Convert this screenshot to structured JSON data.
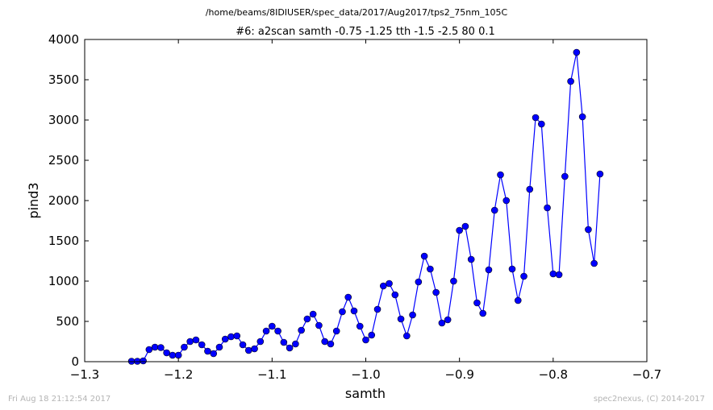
{
  "file_path": "/home/beams/8IDIUSER/spec_data/2017/Aug2017/tps2_75nm_105C",
  "footer": {
    "left": "Fri Aug 18 21:12:54 2017",
    "right": "spec2nexus, (C) 2014-2017"
  },
  "chart_data": {
    "type": "line",
    "title": "#6: a2scan  samth -0.75 -1.25  tth -1.5 -2.5  80 0.1",
    "xlabel": "samth",
    "ylabel": "pind3",
    "xlim": [
      -1.3,
      -0.7
    ],
    "ylim": [
      0,
      4000
    ],
    "xticks": [
      -1.3,
      -1.2,
      -1.1,
      -1.0,
      -0.9,
      -0.8,
      -0.7
    ],
    "xtick_labels": [
      "−1.3",
      "−1.2",
      "−1.1",
      "−1.0",
      "−0.9",
      "−0.8",
      "−0.7"
    ],
    "yticks": [
      0,
      500,
      1000,
      1500,
      2000,
      2500,
      3000,
      3500,
      4000
    ],
    "ytick_labels": [
      "0",
      "500",
      "1000",
      "1500",
      "2000",
      "2500",
      "3000",
      "3500",
      "4000"
    ],
    "grid": false,
    "series": [
      {
        "color": "#0000ff",
        "marker": "circle",
        "x": [
          -1.25,
          -1.24375,
          -1.2375,
          -1.23125,
          -1.225,
          -1.21875,
          -1.2125,
          -1.20625,
          -1.2,
          -1.19375,
          -1.1875,
          -1.18125,
          -1.175,
          -1.16875,
          -1.1625,
          -1.15625,
          -1.15,
          -1.14375,
          -1.1375,
          -1.13125,
          -1.125,
          -1.11875,
          -1.1125,
          -1.10625,
          -1.1,
          -1.09375,
          -1.0875,
          -1.08125,
          -1.075,
          -1.06875,
          -1.0625,
          -1.05625,
          -1.05,
          -1.04375,
          -1.0375,
          -1.03125,
          -1.025,
          -1.01875,
          -1.0125,
          -1.00625,
          -1.0,
          -0.99375,
          -0.9875,
          -0.98125,
          -0.975,
          -0.96875,
          -0.9625,
          -0.95625,
          -0.95,
          -0.94375,
          -0.9375,
          -0.93125,
          -0.925,
          -0.91875,
          -0.9125,
          -0.90625,
          -0.9,
          -0.89375,
          -0.8875,
          -0.88125,
          -0.875,
          -0.86875,
          -0.8625,
          -0.85625,
          -0.85,
          -0.84375,
          -0.8375,
          -0.83125,
          -0.825,
          -0.81875,
          -0.8125,
          -0.80625,
          -0.8,
          -0.79375,
          -0.7875,
          -0.78125,
          -0.775,
          -0.76875,
          -0.7625,
          -0.75625,
          -0.75
        ],
        "y": [
          5,
          5,
          10,
          150,
          180,
          175,
          110,
          80,
          80,
          180,
          250,
          270,
          210,
          130,
          100,
          180,
          280,
          310,
          320,
          210,
          140,
          160,
          250,
          380,
          440,
          380,
          240,
          170,
          220,
          390,
          530,
          590,
          450,
          250,
          220,
          380,
          620,
          800,
          630,
          440,
          270,
          330,
          650,
          940,
          970,
          830,
          530,
          320,
          580,
          990,
          1310,
          1150,
          860,
          480,
          520,
          1000,
          1630,
          1680,
          1270,
          730,
          600,
          1140,
          1880,
          2320,
          2000,
          1150,
          760,
          1060,
          2140,
          3030,
          2950,
          1910,
          1090,
          1080,
          2300,
          3480,
          3840,
          3040,
          1640,
          1220,
          2330
        ]
      }
    ]
  }
}
